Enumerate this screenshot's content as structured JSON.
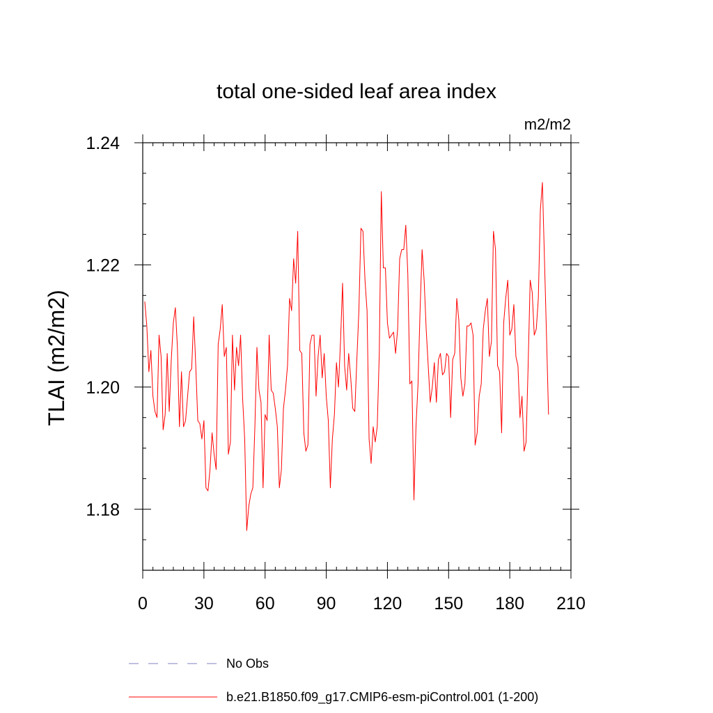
{
  "chart_data": {
    "type": "line",
    "title": "total one-sided leaf area index",
    "units_label": "m2/m2",
    "xlabel": "",
    "ylabel": "TLAI  (m2/m2)",
    "xlim": [
      0,
      210
    ],
    "ylim": [
      1.17,
      1.24
    ],
    "x_ticks": [
      0,
      30,
      60,
      90,
      120,
      150,
      180,
      210
    ],
    "x_tick_labels": [
      "0",
      "30",
      "60",
      "90",
      "120",
      "150",
      "180",
      "210"
    ],
    "y_ticks": [
      1.18,
      1.2,
      1.22,
      1.24
    ],
    "y_tick_labels": [
      "1.18",
      "1.20",
      "1.22",
      "1.24"
    ],
    "legend": [
      {
        "label": "No Obs",
        "color": "#8080c0",
        "style": "dashed"
      },
      {
        "label": "b.e21.B1850.f09_g17.CMIP6-esm-piControl.001 (1-200)",
        "color": "#ff0000",
        "style": "solid"
      }
    ],
    "series": [
      {
        "name": "b.e21.B1850.f09_g17.CMIP6-esm-piControl.001 (1-200)",
        "color": "#ff0000",
        "x_start": 1,
        "values": [
          1.214,
          1.21,
          1.2025,
          1.206,
          1.1985,
          1.196,
          1.195,
          1.2085,
          1.205,
          1.193,
          1.1955,
          1.2055,
          1.196,
          1.2045,
          1.2105,
          1.213,
          1.2065,
          1.1935,
          1.2025,
          1.1935,
          1.1945,
          1.1985,
          1.2025,
          1.203,
          1.2115,
          1.2035,
          1.1945,
          1.194,
          1.1915,
          1.1945,
          1.1835,
          1.183,
          1.1865,
          1.1925,
          1.189,
          1.1865,
          1.207,
          1.2095,
          1.2135,
          1.205,
          1.2065,
          1.189,
          1.191,
          1.2085,
          1.1995,
          1.2065,
          1.2035,
          1.2085,
          1.198,
          1.1915,
          1.1765,
          1.1805,
          1.1825,
          1.1835,
          1.1935,
          1.2065,
          1.1995,
          1.1975,
          1.1835,
          1.1955,
          1.1945,
          1.2085,
          1.1995,
          1.199,
          1.1965,
          1.1935,
          1.1835,
          1.1865,
          1.1965,
          1.1995,
          1.2035,
          1.2145,
          1.2125,
          1.221,
          1.217,
          1.2255,
          1.206,
          1.2055,
          1.1925,
          1.1895,
          1.1905,
          1.207,
          1.2085,
          1.2085,
          1.1985,
          1.205,
          1.2085,
          1.2015,
          1.2055,
          1.1985,
          1.1945,
          1.1835,
          1.1915,
          1.1955,
          1.204,
          1.2,
          1.2075,
          1.217,
          1.2035,
          1.1995,
          1.2055,
          1.2015,
          1.1965,
          1.196,
          1.2045,
          1.2125,
          1.226,
          1.2255,
          1.2175,
          1.2125,
          1.1915,
          1.1875,
          1.1935,
          1.191,
          1.1935,
          1.2055,
          1.232,
          1.2195,
          1.2195,
          1.2105,
          1.208,
          1.2085,
          1.209,
          1.2055,
          1.2095,
          1.221,
          1.2225,
          1.2225,
          1.2265,
          1.2185,
          1.2005,
          1.201,
          1.1815,
          1.1935,
          1.2005,
          1.2125,
          1.2225,
          1.2175,
          1.2095,
          1.2035,
          1.1975,
          1.2,
          1.204,
          1.1975,
          1.2045,
          1.2055,
          1.202,
          1.2025,
          1.2055,
          1.205,
          1.195,
          1.2045,
          1.2055,
          1.2145,
          1.211,
          1.2015,
          1.1985,
          1.2005,
          1.21,
          1.21,
          1.2105,
          1.2085,
          1.1905,
          1.1925,
          1.1985,
          1.2005,
          1.2095,
          1.2125,
          1.2145,
          1.205,
          1.2075,
          1.2255,
          1.2225,
          1.2035,
          1.2025,
          1.1925,
          1.2105,
          1.2145,
          1.2175,
          1.2085,
          1.2095,
          1.2135,
          1.205,
          1.2035,
          1.195,
          1.1985,
          1.1895,
          1.191,
          1.2035,
          1.2175,
          1.2155,
          1.2085,
          1.2095,
          1.2145,
          1.229,
          1.2335,
          1.221,
          1.2085,
          1.1955
        ]
      }
    ]
  }
}
